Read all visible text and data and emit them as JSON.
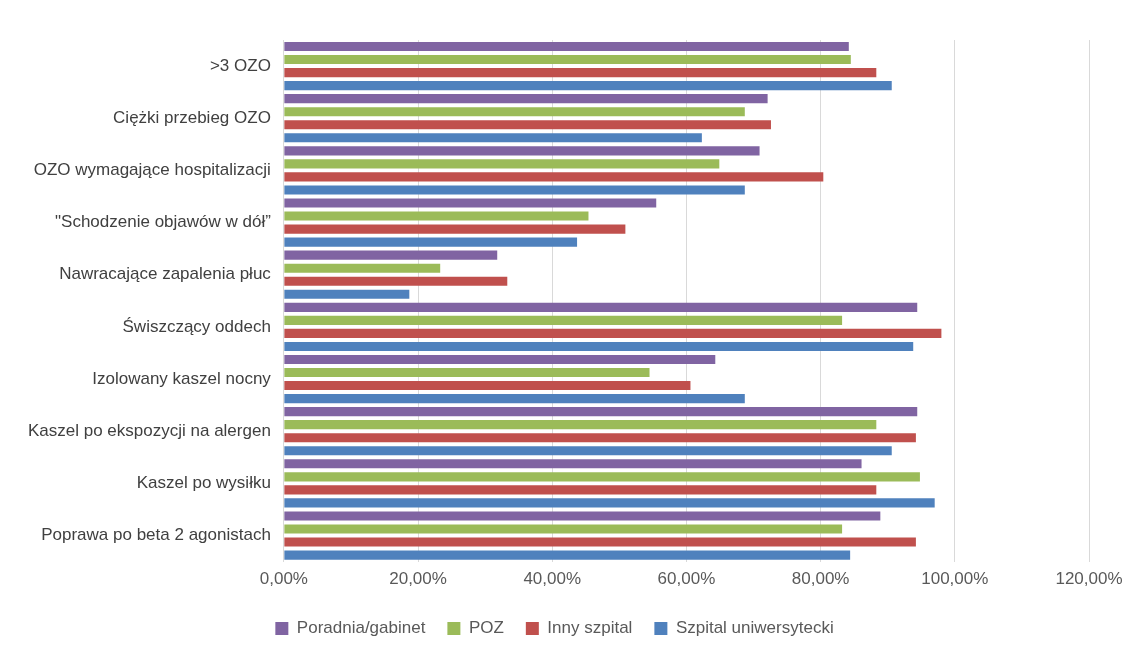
{
  "chart_data": {
    "type": "bar",
    "orientation": "horizontal",
    "categories": [
      ">3 OZO",
      "Ciężki przebieg OZO",
      "OZO wymagające hospitalizacji",
      "\"Schodzenie objawów w dół”",
      "Nawracające zapalenia płuc",
      "Świszczący oddech",
      "Izolowany kaszel nocny",
      "Kaszel po ekspozycji na alergen",
      "Kaszel po wysiłku",
      "Poprawa po beta 2 agonistach"
    ],
    "series": [
      {
        "name": "Poradnia/gabinet",
        "color": "#8064a2",
        "values": [
          84.2,
          72.1,
          70.9,
          55.5,
          31.8,
          94.4,
          64.3,
          94.4,
          86.1,
          88.9
        ]
      },
      {
        "name": "POZ",
        "color": "#9bbb59",
        "values": [
          84.5,
          68.7,
          64.9,
          45.4,
          23.3,
          83.2,
          54.5,
          88.3,
          94.8,
          83.2
        ]
      },
      {
        "name": "Inny szpital",
        "color": "#c0504d",
        "values": [
          88.3,
          72.6,
          80.4,
          50.9,
          33.3,
          98.0,
          60.6,
          94.2,
          88.3,
          94.2
        ]
      },
      {
        "name": "Szpital uniwersytecki",
        "color": "#4f81bd",
        "values": [
          90.6,
          62.3,
          68.7,
          43.7,
          18.7,
          93.8,
          68.7,
          90.6,
          97.0,
          84.4
        ]
      }
    ],
    "xlim": [
      0,
      120
    ],
    "xticks": [
      {
        "value": 0,
        "label": "0,00%"
      },
      {
        "value": 20,
        "label": "20,00%"
      },
      {
        "value": 40,
        "label": "40,00%"
      },
      {
        "value": 60,
        "label": "60,00%"
      },
      {
        "value": 80,
        "label": "80,00%"
      },
      {
        "value": 100,
        "label": "100,00%"
      },
      {
        "value": 120,
        "label": "120,00%"
      }
    ],
    "grid": "x",
    "legend": "bottom"
  }
}
